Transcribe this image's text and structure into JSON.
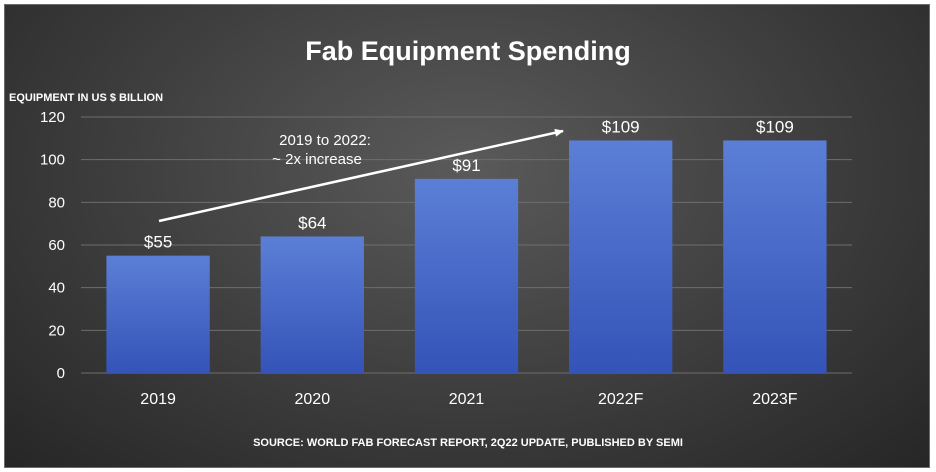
{
  "chart_data": {
    "type": "bar",
    "title": "Fab Equipment Spending",
    "ylabel": "EQUIPMENT IN US $ BILLION",
    "xlabel": "",
    "categories": [
      "2019",
      "2020",
      "2021",
      "2022F",
      "2023F"
    ],
    "values": [
      55,
      64,
      91,
      109,
      109
    ],
    "data_labels": [
      "$55",
      "$64",
      "$91",
      "$109",
      "$109"
    ],
    "ylim": [
      0,
      120
    ],
    "yticks": [
      "0",
      "20",
      "40",
      "60",
      "80",
      "100",
      "120"
    ],
    "grid": true,
    "annotation": {
      "lines": [
        "2019 to 2022:",
        "~ 2x increase"
      ]
    },
    "source": "SOURCE: WORLD FAB FORECAST REPORT, 2Q22 UPDATE, PUBLISHED BY SEMI",
    "colors": {
      "bar_top": "#5b7fd6",
      "bar_bottom": "#3553b8",
      "arrow": "#ffffff"
    }
  }
}
